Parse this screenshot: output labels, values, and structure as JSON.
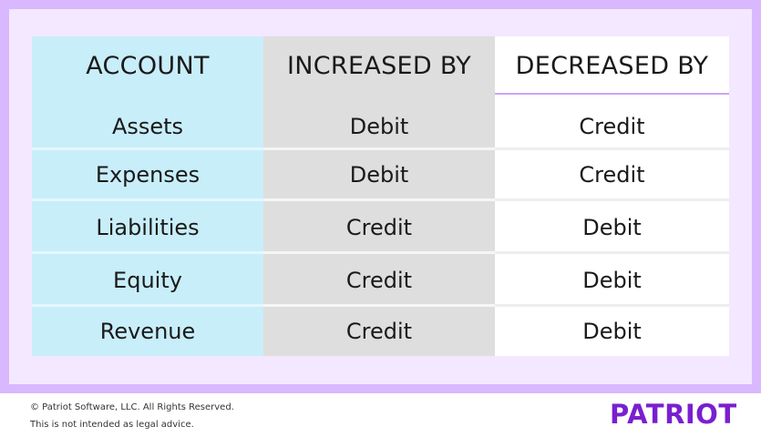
{
  "table": {
    "headers": [
      "ACCOUNT",
      "INCREASED BY",
      "DECREASED BY"
    ],
    "rows": [
      [
        "Assets",
        "Debit",
        "Credit"
      ],
      [
        "Expenses",
        "Debit",
        "Credit"
      ],
      [
        "Liabilities",
        "Credit",
        "Debit"
      ],
      [
        "Equity",
        "Credit",
        "Debit"
      ],
      [
        "Revenue",
        "Credit",
        "Debit"
      ]
    ]
  },
  "footer": {
    "copyright": "© Patriot Software, LLC. All Rights Reserved.",
    "disclaimer": "This is not intended as legal advice.",
    "logo": "PATRIOT"
  },
  "colors": {
    "border": "#d9b8ff",
    "panel": "#f3e8ff",
    "account_column": "#c8eefa",
    "increased_column": "#dedede",
    "decreased_column": "#ffffff",
    "header_rule": "#c9a6f5",
    "logo": "#7a1fd0"
  }
}
